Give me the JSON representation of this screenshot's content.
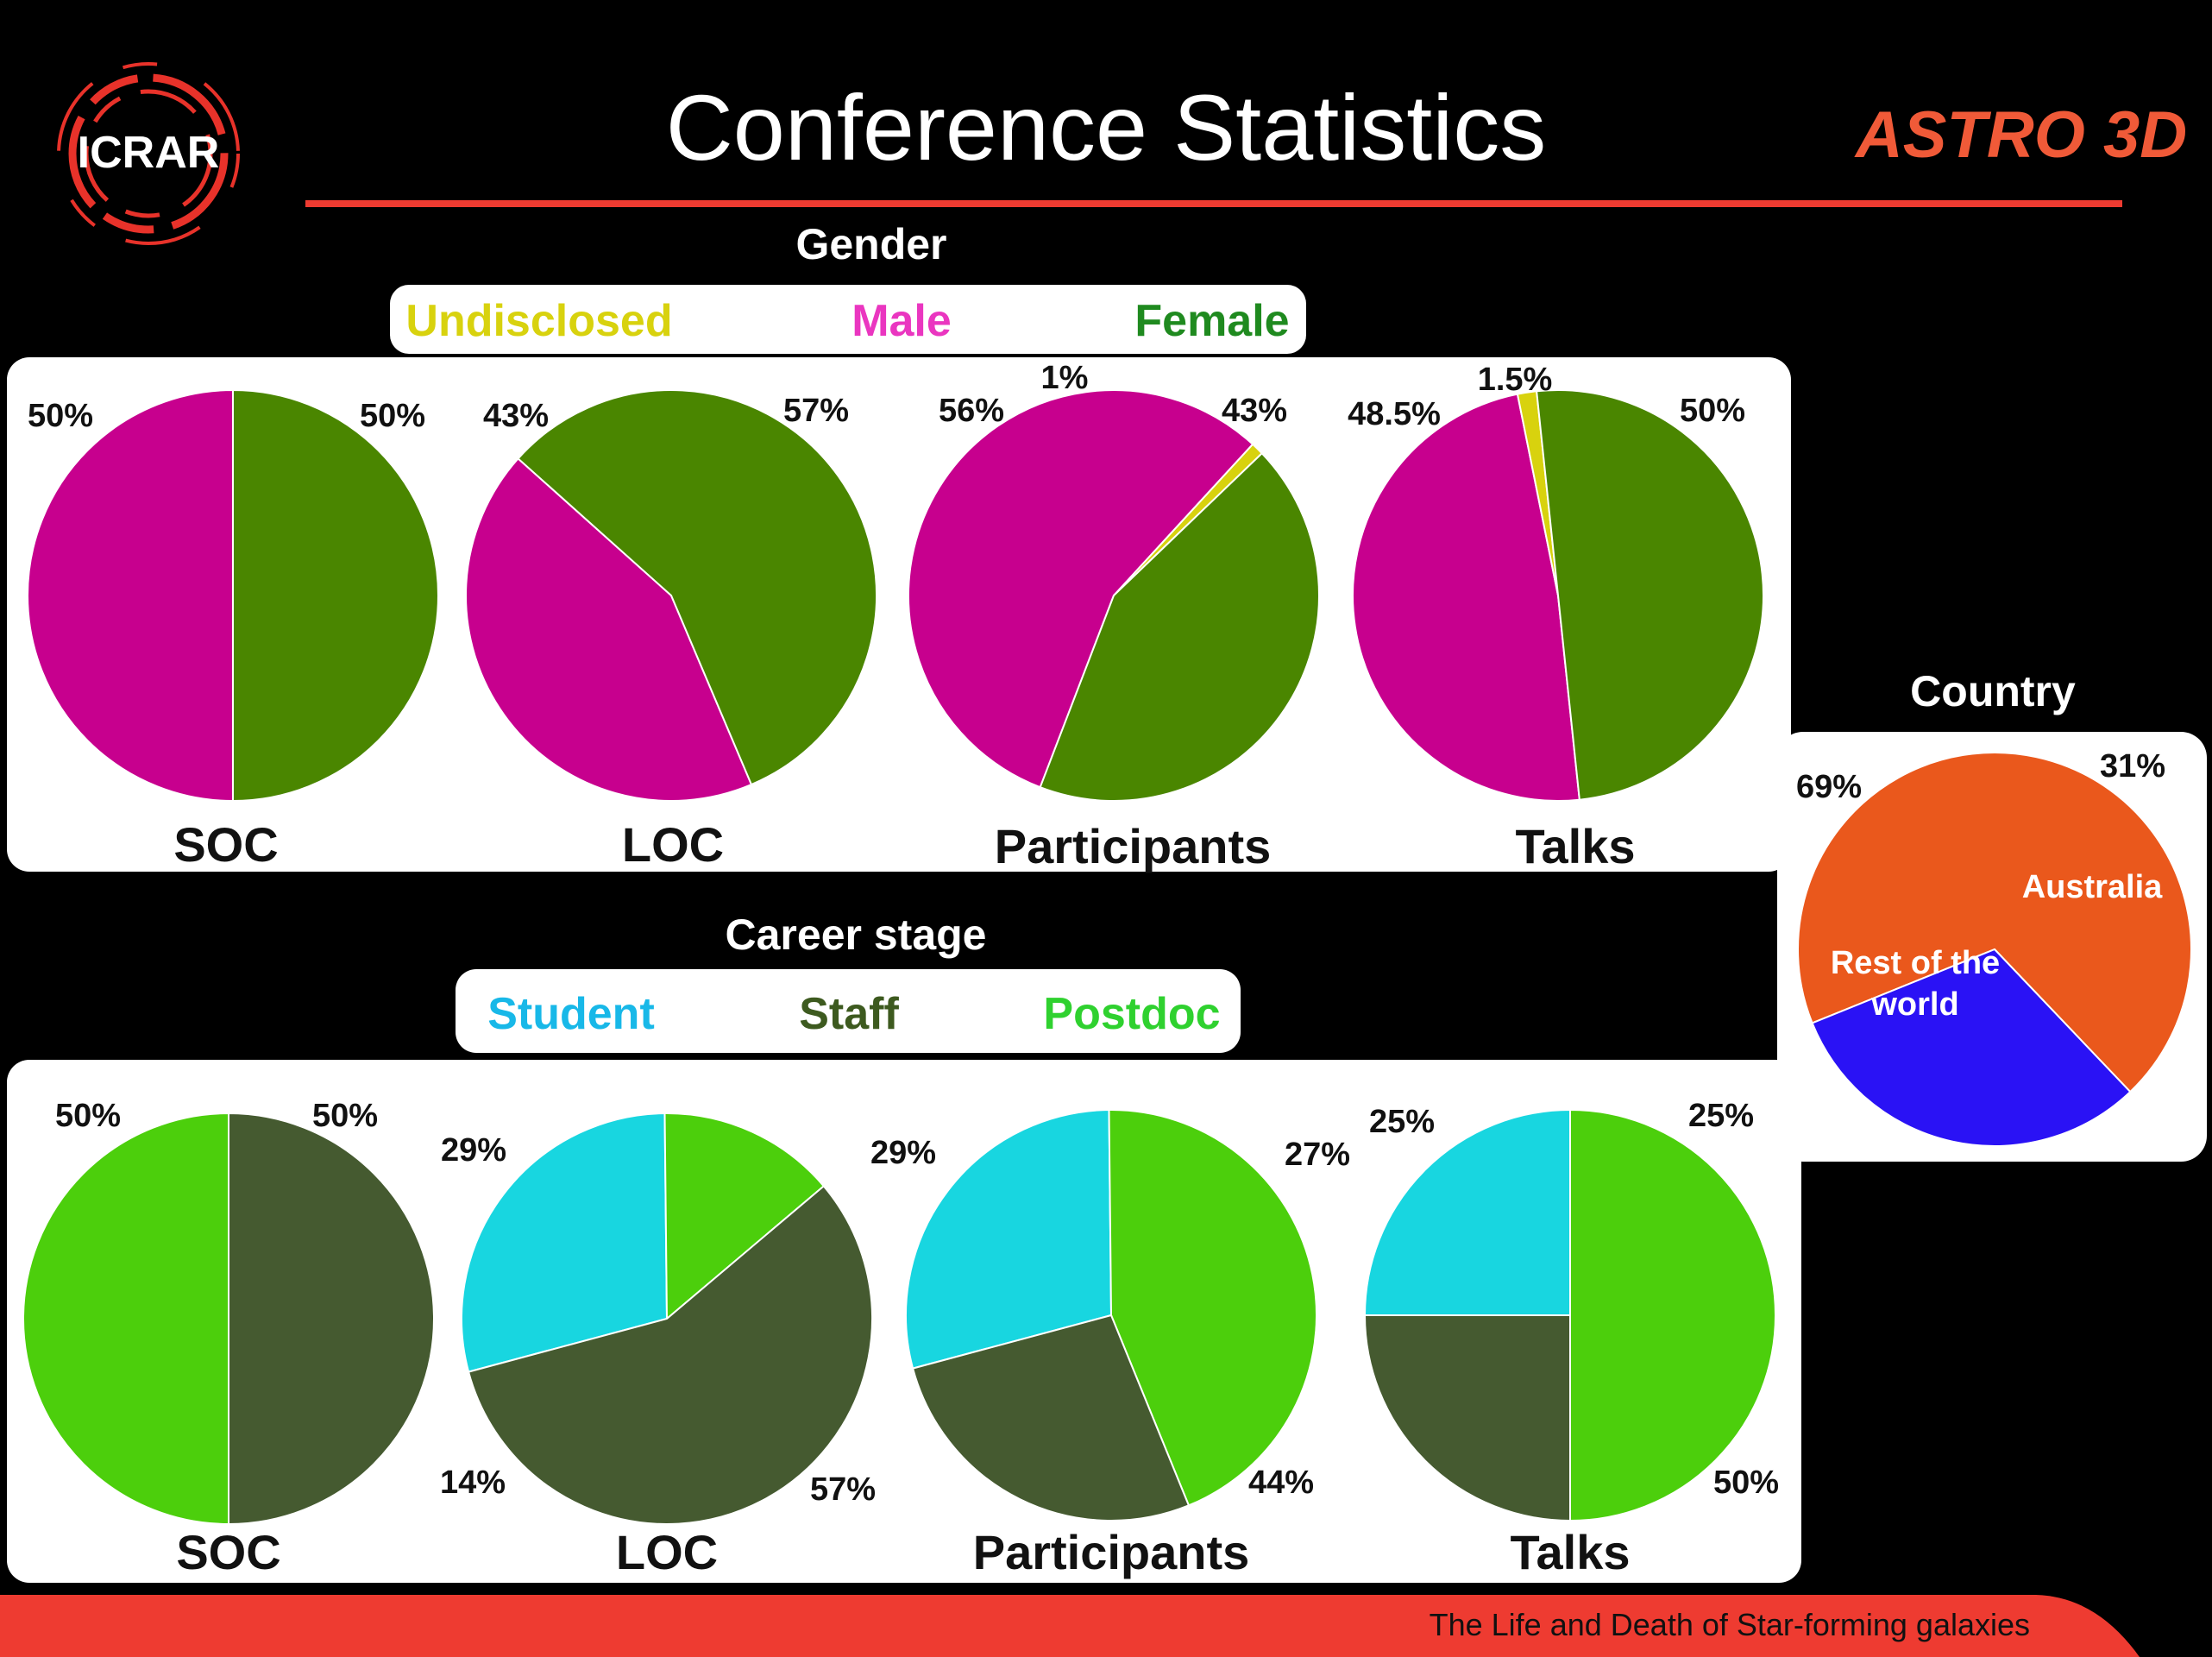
{
  "header": {
    "title": "Conference Statistics",
    "left_logo": "ICRAR",
    "right_logo": "ASTRO 3D",
    "footer_text": "The Life and Death of Star-forming galaxies"
  },
  "colors": {
    "background": "#000000",
    "accent_red": "#ee3b31",
    "astro_orange": "#f05a38",
    "male": "#c7008e",
    "female": "#4a8600",
    "undisclosed": "#d8d20e",
    "student": "#18d6e0",
    "staff": "#455a30",
    "postdoc": "#4ccf0c",
    "australia": "#2a12f5",
    "rest_of_world": "#ea581c"
  },
  "gender": {
    "heading": "Gender",
    "legend": [
      {
        "label": "Undisclosed",
        "color": "#d8d20e"
      },
      {
        "label": "Male",
        "color": "#ea36c0"
      },
      {
        "label": "Female",
        "color": "#1f8a1f"
      }
    ]
  },
  "career": {
    "heading": "Career stage",
    "legend": [
      {
        "label": "Student",
        "color": "#18b8e8"
      },
      {
        "label": "Staff",
        "color": "#3d5a1f"
      },
      {
        "label": "Postdoc",
        "color": "#2fd12f"
      }
    ]
  },
  "country": {
    "heading": "Country"
  },
  "chart_data": [
    {
      "type": "pie",
      "group": "Gender",
      "title": "SOC",
      "slices": [
        {
          "label": "Male",
          "value": 50,
          "text": "50%"
        },
        {
          "label": "Female",
          "value": 50,
          "text": "50%"
        }
      ]
    },
    {
      "type": "pie",
      "group": "Gender",
      "title": "LOC",
      "slices": [
        {
          "label": "Male",
          "value": 43,
          "text": "43%"
        },
        {
          "label": "Female",
          "value": 57,
          "text": "57%"
        }
      ]
    },
    {
      "type": "pie",
      "group": "Gender",
      "title": "Participants",
      "slices": [
        {
          "label": "Male",
          "value": 56,
          "text": "56%"
        },
        {
          "label": "Undisclosed",
          "value": 1,
          "text": "1%"
        },
        {
          "label": "Female",
          "value": 43,
          "text": "43%"
        }
      ]
    },
    {
      "type": "pie",
      "group": "Gender",
      "title": "Talks",
      "slices": [
        {
          "label": "Male",
          "value": 48.5,
          "text": "48.5%"
        },
        {
          "label": "Undisclosed",
          "value": 1.5,
          "text": "1.5%"
        },
        {
          "label": "Female",
          "value": 50,
          "text": "50%"
        }
      ]
    },
    {
      "type": "pie",
      "group": "Career stage",
      "title": "SOC",
      "slices": [
        {
          "label": "Postdoc",
          "value": 50,
          "text": "50%"
        },
        {
          "label": "Staff",
          "value": 50,
          "text": "50%"
        }
      ]
    },
    {
      "type": "pie",
      "group": "Career stage",
      "title": "LOC",
      "slices": [
        {
          "label": "Student",
          "value": 29,
          "text": "29%"
        },
        {
          "label": "Postdoc",
          "value": 14,
          "text": "14%"
        },
        {
          "label": "Staff",
          "value": 57,
          "text": "57%"
        }
      ]
    },
    {
      "type": "pie",
      "group": "Career stage",
      "title": "Participants",
      "slices": [
        {
          "label": "Student",
          "value": 29,
          "text": "29%"
        },
        {
          "label": "Postdoc",
          "value": 44,
          "text": "44%"
        },
        {
          "label": "Staff",
          "value": 27,
          "text": "27%"
        }
      ]
    },
    {
      "type": "pie",
      "group": "Career stage",
      "title": "Talks",
      "slices": [
        {
          "label": "Student",
          "value": 25,
          "text": "25%"
        },
        {
          "label": "Postdoc",
          "value": 50,
          "text": "50%"
        },
        {
          "label": "Staff",
          "value": 25,
          "text": "25%"
        }
      ]
    },
    {
      "type": "pie",
      "group": "Country",
      "title": "",
      "slices": [
        {
          "label": "Rest of the world",
          "value": 69,
          "text": "69%"
        },
        {
          "label": "Australia",
          "value": 31,
          "text": "31%"
        }
      ]
    }
  ]
}
